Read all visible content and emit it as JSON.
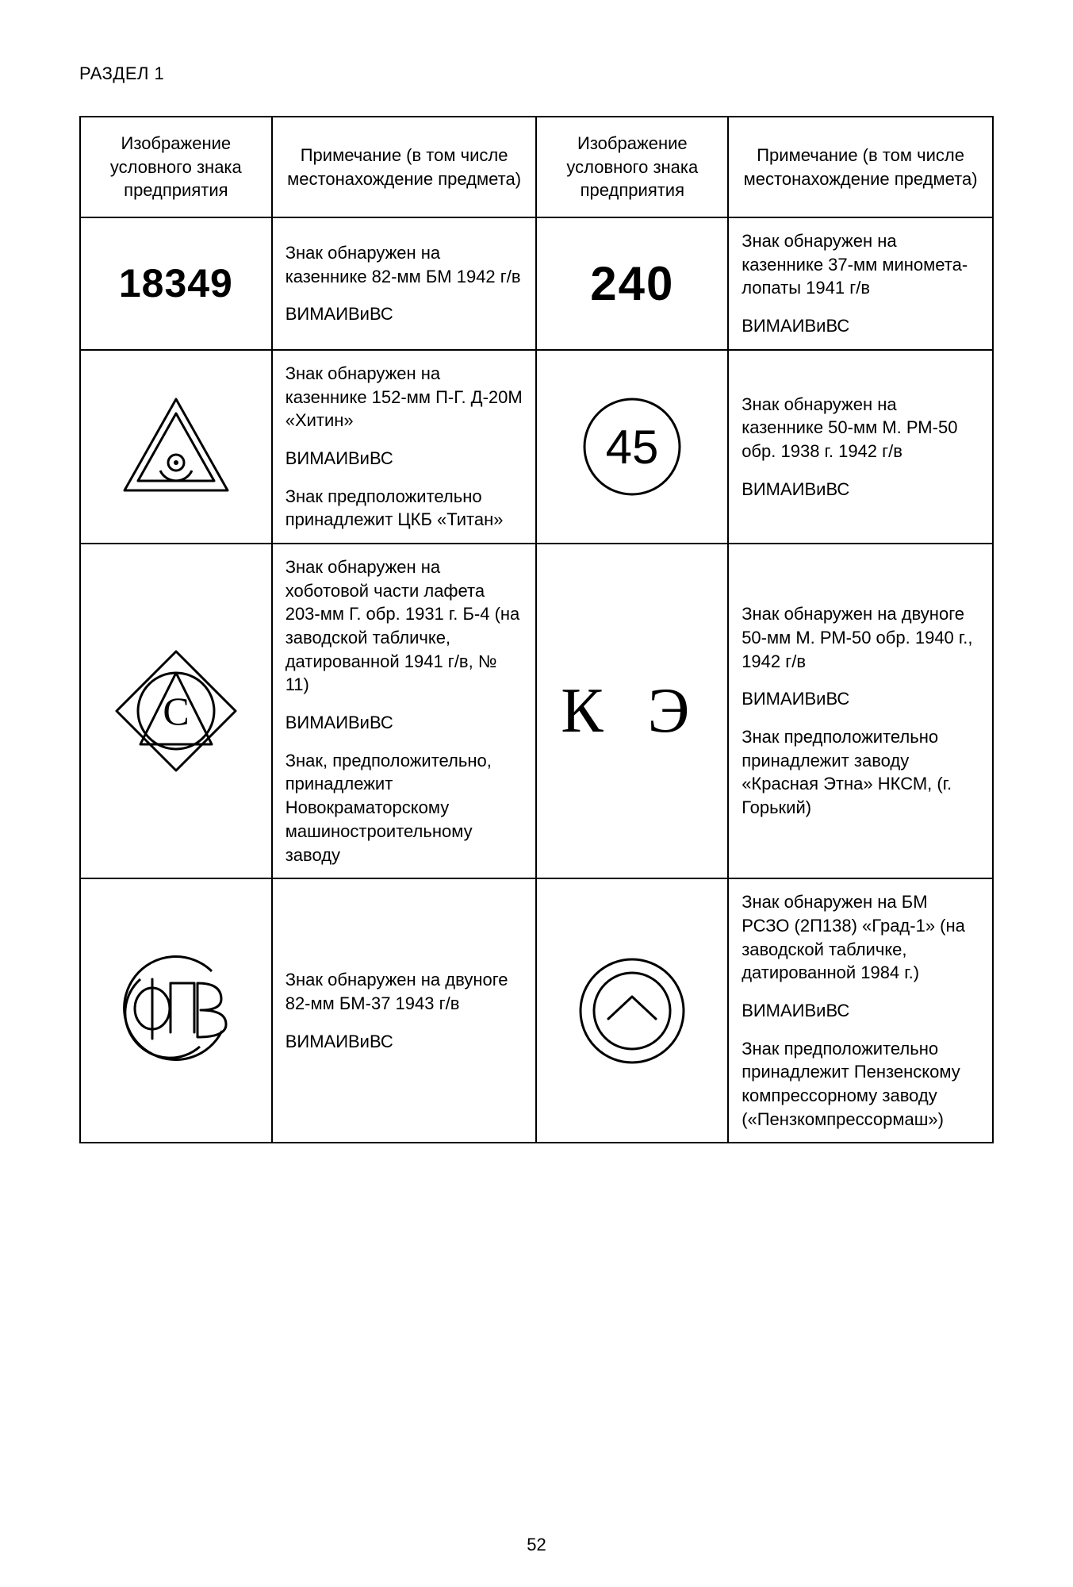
{
  "page": {
    "section_title": "РАЗДЕЛ 1",
    "page_number": "52",
    "background_color": "#ffffff",
    "text_color": "#000000",
    "border_color": "#000000",
    "body_fontsize": 22,
    "header_fontsize": 22
  },
  "table": {
    "headers": {
      "sign_col": "Изображение условного знака предприятия",
      "note_col": "Примечание (в том числе местонахождение предмета)"
    },
    "rows": [
      {
        "left_sign": {
          "type": "text",
          "class": "sign-18349",
          "text": "18349"
        },
        "left_note": [
          "Знак обнаружен на казеннике 82-мм БМ 1942 г/в",
          "ВИМАИВиВС"
        ],
        "right_sign": {
          "type": "text",
          "class": "sign-240",
          "text": "240"
        },
        "right_note": [
          "Знак обнаружен на казеннике 37-мм миномета-лопаты 1941 г/в",
          "ВИМАИВиВС"
        ]
      },
      {
        "left_sign": {
          "type": "svg",
          "id": "triangle-eye"
        },
        "left_note": [
          "Знак обнаружен на казеннике 152-мм П-Г. Д-20М «Хитин»",
          "ВИМАИВиВС",
          "Знак предположительно принадлежит ЦКБ «Титан»"
        ],
        "right_sign": {
          "type": "svg",
          "id": "circle-45"
        },
        "right_note": [
          "Знак обнаружен на казеннике 50-мм М. РМ-50 обр. 1938 г. 1942 г/в",
          "ВИМАИВиВС"
        ]
      },
      {
        "left_sign": {
          "type": "svg",
          "id": "diamond-c"
        },
        "left_note": [
          "Знак обнаружен на хоботовой части лафета 203-мм Г. обр. 1931 г. Б-4 (на заводской табличке, датированной 1941 г/в, № 11)",
          "ВИМАИВиВС",
          "Знак, предположительно, принадлежит Новокраматорскому машиностроительному заводу"
        ],
        "right_sign": {
          "type": "text",
          "class": "sign-ke",
          "text": "К Э"
        },
        "right_note": [
          "Знак обнаружен на двуноге 50-мм М. РМ-50 обр. 1940 г., 1942 г/в",
          "ВИМАИВиВС",
          "Знак предположительно принадлежит заводу «Красная Этна» НКСМ, (г. Горький)"
        ]
      },
      {
        "left_sign": {
          "type": "svg",
          "id": "circle-fpv"
        },
        "left_note": [
          "Знак обнаружен на двуноге 82-мм БМ-37 1943 г/в",
          "ВИМАИВиВС"
        ],
        "right_sign": {
          "type": "svg",
          "id": "circle-arrow"
        },
        "right_note": [
          "Знак обнаружен на БМ РСЗО (2П138) «Град-1» (на заводской табличке, датированной 1984 г.)",
          "ВИМАИВиВС",
          "Знак предположительно принадлежит Пензенскому компрессорному заводу («Пензкомпрессормаш»)"
        ]
      }
    ]
  },
  "svg_defs": {
    "stroke": "#000000",
    "stroke_width": 3,
    "circle_45_text": "45",
    "diamond_c_text": "С",
    "fpv_text": "ФПВ"
  }
}
